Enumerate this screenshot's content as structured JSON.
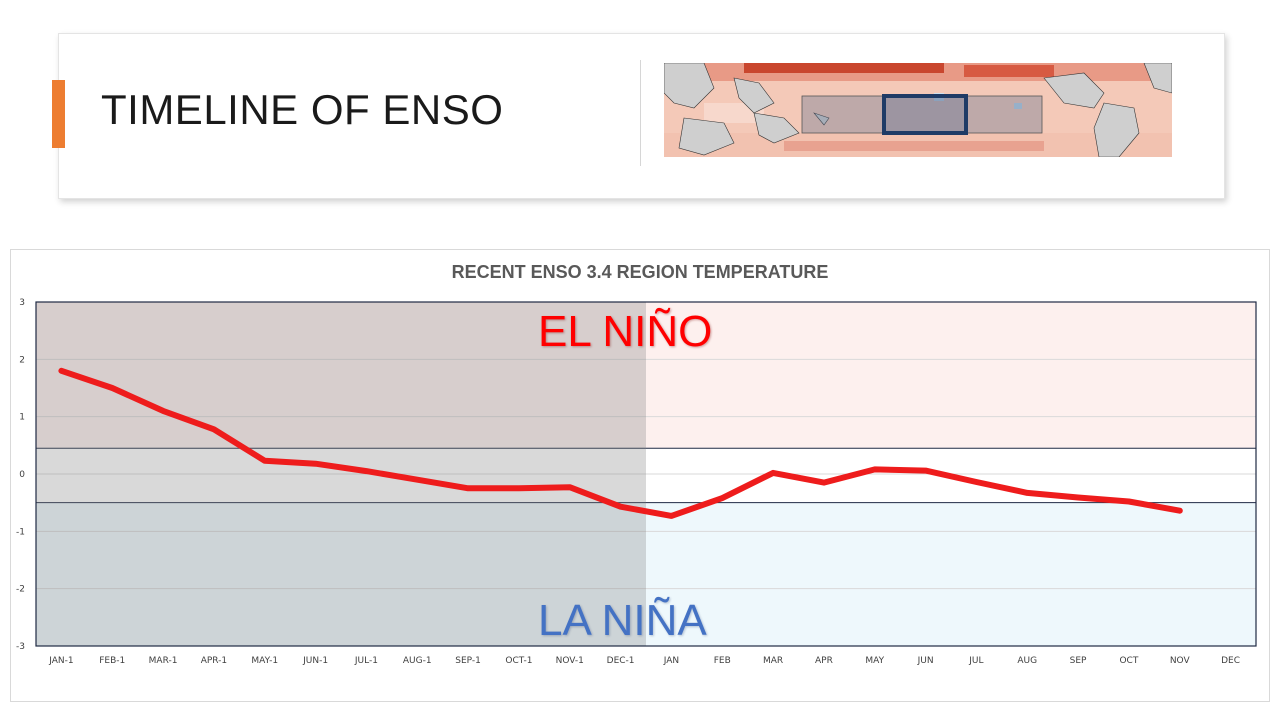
{
  "slide": {
    "title": "TIMELINE OF ENSO"
  },
  "map": {
    "description_icon": "sst-anomaly-map-icon"
  },
  "colors": {
    "accent": "#ed7d31",
    "line": "#ee1c1c",
    "el_nino_text": "#ff0000",
    "la_nina_text": "#4472c4",
    "el_nino_band": "#fdf0ee",
    "la_nina_band": "#eef8fc",
    "past_shade": "#808080"
  },
  "chart_data": {
    "type": "line",
    "title": "RECENT ENSO 3.4 REGION TEMPERATURE",
    "xlabel": "",
    "ylabel": "",
    "categories": [
      "JAN-1",
      "FEB-1",
      "MAR-1",
      "APR-1",
      "MAY-1",
      "JUN-1",
      "JUL-1",
      "AUG-1",
      "SEP-1",
      "OCT-1",
      "NOV-1",
      "DEC-1",
      "JAN",
      "FEB",
      "MAR",
      "APR",
      "MAY",
      "JUN",
      "JUL",
      "AUG",
      "SEP",
      "OCT",
      "NOV",
      "DEC"
    ],
    "series": [
      {
        "values": [
          1.8,
          1.5,
          1.1,
          0.78,
          0.23,
          0.18,
          0.05,
          -0.1,
          -0.25,
          -0.25,
          -0.23,
          -0.57,
          -0.73,
          -0.42,
          0.02,
          -0.15,
          0.08,
          0.06,
          -0.14,
          -0.33,
          -0.41,
          -0.48,
          -0.64,
          null
        ]
      }
    ],
    "ylim": [
      -3,
      3
    ],
    "yticks": [
      "3",
      "2",
      "1",
      "0",
      "-1",
      "-2",
      "-3"
    ],
    "bands": {
      "el_nino_threshold": 0.45,
      "la_nina_threshold": -0.5
    },
    "annotations": {
      "el_nino": "EL NIÑO",
      "la_nina": "LA NIÑA"
    },
    "shaded_past_through": "DEC-1",
    "grid": true,
    "legend": "none"
  }
}
